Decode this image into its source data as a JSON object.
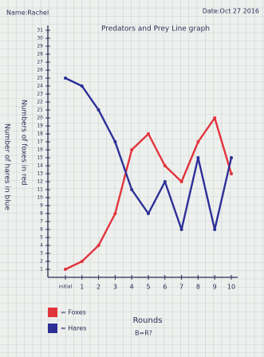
{
  "chart_data": {
    "type": "line",
    "title": "Predators and Prey Line graph",
    "name": "Name:Rachel",
    "date": "Date:Oct 27 2016",
    "x_label": "Rounds",
    "x_note": "B=R?",
    "y_labels": [
      "Number of hares in blue",
      "Numbers of foxes in red"
    ],
    "categories": [
      "initial",
      "1",
      "2",
      "3",
      "4",
      "5",
      "6",
      "7",
      "8",
      "9",
      "10"
    ],
    "series": [
      {
        "name": "= Foxes",
        "color": "#e2343c",
        "values": [
          1,
          2,
          4,
          8,
          16,
          18,
          14,
          12,
          17,
          20,
          13
        ]
      },
      {
        "name": "= Hares",
        "color": "#2c3096",
        "values": [
          25,
          24,
          21,
          17,
          11,
          8,
          12,
          6,
          15,
          6,
          15
        ]
      }
    ],
    "ylim": [
      0,
      31
    ],
    "yticks": [
      1,
      2,
      3,
      4,
      5,
      6,
      7,
      8,
      9,
      10,
      11,
      12,
      13,
      14,
      15,
      16,
      17,
      18,
      19,
      20,
      21,
      22,
      23,
      24,
      25,
      26,
      27,
      28,
      29,
      30,
      31
    ],
    "grid": true
  }
}
